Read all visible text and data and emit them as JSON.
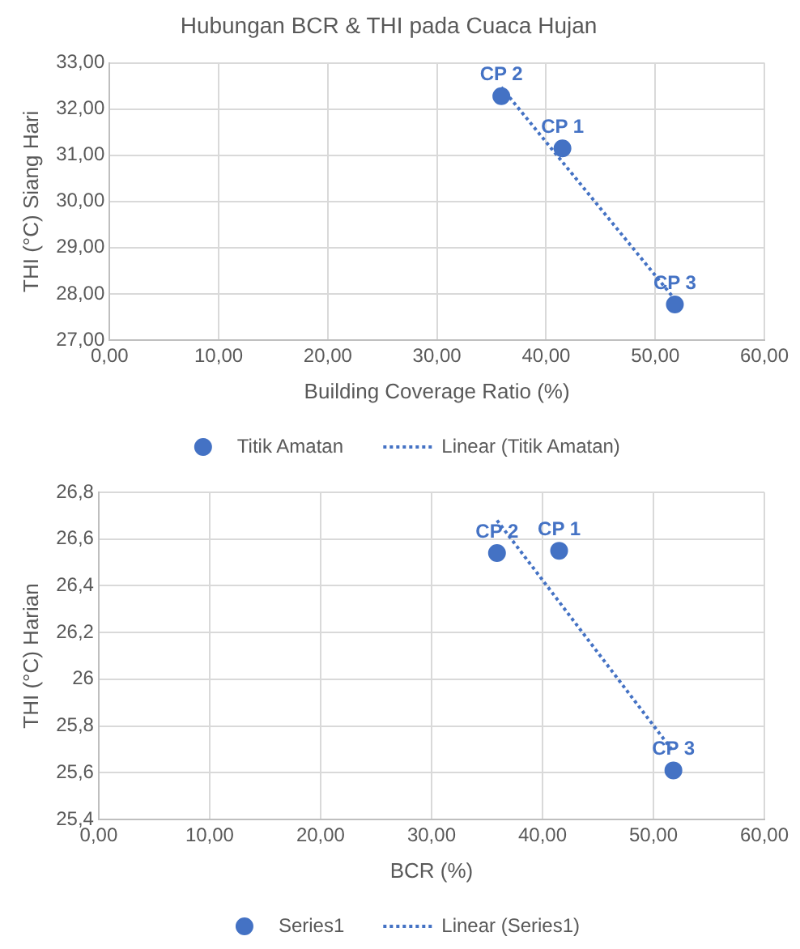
{
  "chart_data": [
    {
      "type": "scatter",
      "title": "Hubungan BCR & THI pada Cuaca Hujan",
      "xlabel": "Building Coverage Ratio (%)",
      "ylabel": "THI (°C) Siang Hari",
      "series": [
        {
          "name": "Titik Amatan",
          "type": "scatter",
          "marker": "circle",
          "color": "#4472c4",
          "x": [
            41.5,
            35.9,
            51.8
          ],
          "values": [
            31.15,
            32.28,
            27.77
          ]
        },
        {
          "name": "Linear (Titik Amatan)",
          "type": "line",
          "marker": "none",
          "color": "#4472c4",
          "line_style": "dotted",
          "x": [
            35.9,
            51.8
          ],
          "values": [
            32.47,
            27.88
          ]
        }
      ],
      "annotations": [
        {
          "text": "CP 1",
          "x": 41.5,
          "y": 31.15
        },
        {
          "text": "CP 2",
          "x": 35.9,
          "y": 32.28
        },
        {
          "text": "CP 3",
          "x": 51.8,
          "y": 27.77
        }
      ],
      "xlim": [
        0,
        60
      ],
      "xticks": [
        {
          "value": 0,
          "label": "0,00"
        },
        {
          "value": 10,
          "label": "10,00"
        },
        {
          "value": 20,
          "label": "20,00"
        },
        {
          "value": 30,
          "label": "30,00"
        },
        {
          "value": 40,
          "label": "40,00"
        },
        {
          "value": 50,
          "label": "50,00"
        },
        {
          "value": 60,
          "label": "60,00"
        }
      ],
      "ylim": [
        27,
        33
      ],
      "yticks": [
        {
          "value": 27,
          "label": "27,00"
        },
        {
          "value": 28,
          "label": "28,00"
        },
        {
          "value": 29,
          "label": "29,00"
        },
        {
          "value": 30,
          "label": "30,00"
        },
        {
          "value": 31,
          "label": "31,00"
        },
        {
          "value": 32,
          "label": "32,00"
        },
        {
          "value": 33,
          "label": "33,00"
        }
      ],
      "grid": true,
      "legend": "bottom"
    },
    {
      "type": "scatter",
      "xlabel": "BCR (%)",
      "ylabel": "THI (°C) Harian",
      "series": [
        {
          "name": "Series1",
          "type": "scatter",
          "marker": "circle",
          "color": "#4472c4",
          "x": [
            41.5,
            35.9,
            51.8
          ],
          "values": [
            26.55,
            26.54,
            25.61
          ]
        },
        {
          "name": "Linear (Series1)",
          "type": "line",
          "marker": "none",
          "color": "#4472c4",
          "line_style": "dotted",
          "x": [
            35.9,
            51.8
          ],
          "values": [
            26.68,
            25.69
          ]
        }
      ],
      "annotations": [
        {
          "text": "CP 1",
          "x": 41.5,
          "y": 26.55
        },
        {
          "text": "CP 2",
          "x": 35.9,
          "y": 26.54
        },
        {
          "text": "CP 3",
          "x": 51.8,
          "y": 25.61
        }
      ],
      "xlim": [
        0,
        60
      ],
      "xticks": [
        {
          "value": 0,
          "label": "0,00"
        },
        {
          "value": 10,
          "label": "10,00"
        },
        {
          "value": 20,
          "label": "20,00"
        },
        {
          "value": 30,
          "label": "30,00"
        },
        {
          "value": 40,
          "label": "40,00"
        },
        {
          "value": 50,
          "label": "50,00"
        },
        {
          "value": 60,
          "label": "60,00"
        }
      ],
      "ylim": [
        25.4,
        26.8
      ],
      "yticks": [
        {
          "value": 25.4,
          "label": "25,4"
        },
        {
          "value": 25.6,
          "label": "25,6"
        },
        {
          "value": 25.8,
          "label": "25,8"
        },
        26,
        {
          "value": 26.2,
          "label": "26,2"
        },
        {
          "value": 26.4,
          "label": "26,4"
        },
        {
          "value": 26.6,
          "label": "26,6"
        },
        {
          "value": 26.8,
          "label": "26,8"
        }
      ],
      "grid": true,
      "legend": "bottom"
    }
  ]
}
